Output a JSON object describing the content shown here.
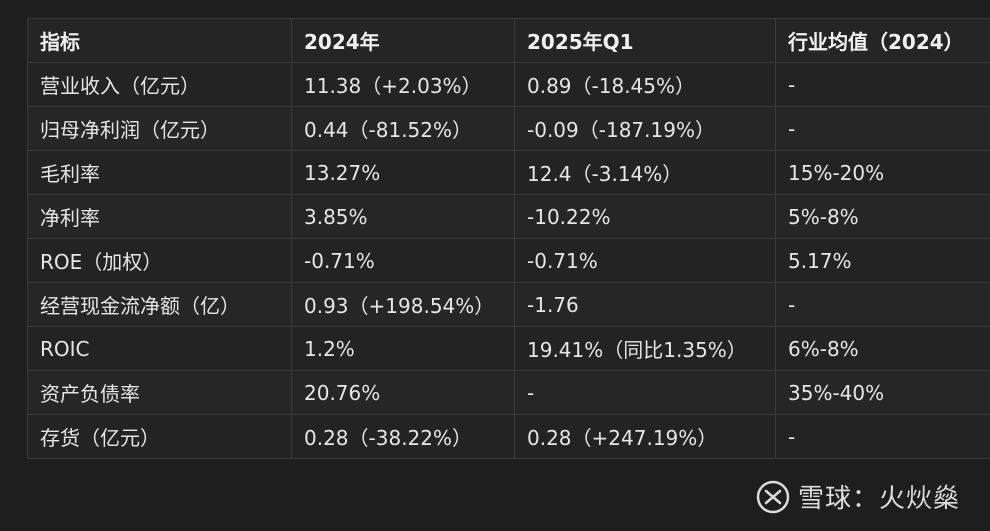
{
  "table": {
    "headers": [
      "指标",
      "2024年",
      "2025年Q1",
      "行业均值（2024）"
    ],
    "rows": [
      [
        "营业收入（亿元）",
        "11.38（+2.03%）",
        "0.89（-18.45%）",
        "-"
      ],
      [
        "归母净利润（亿元）",
        "0.44（-81.52%）",
        "-0.09（-187.19%）",
        "-"
      ],
      [
        "毛利率",
        "13.27%",
        "12.4（-3.14%）",
        "15%-20%"
      ],
      [
        "净利率",
        "3.85%",
        "-10.22%",
        "5%-8%"
      ],
      [
        "ROE（加权）",
        "-0.71%",
        "-0.71%",
        "5.17%"
      ],
      [
        "经营现金流净额（亿）",
        "0.93（+198.54%）",
        "-1.76",
        "-"
      ],
      [
        "ROIC",
        "1.2%",
        "19.41%（同比1.35%）",
        "6%-8%"
      ],
      [
        "资产负债率",
        "20.76%",
        "-",
        "35%-40%"
      ],
      [
        "存货（亿元）",
        "0.28（-38.22%）",
        "0.28（+247.19%）",
        "-"
      ]
    ]
  },
  "watermark": {
    "text": "雪球：火炏燊",
    "icon": "xueqiu-logo-icon"
  },
  "colors": {
    "background": "#1e1e1e",
    "border": "#3a3a3a",
    "text": "#e6e6e6"
  }
}
